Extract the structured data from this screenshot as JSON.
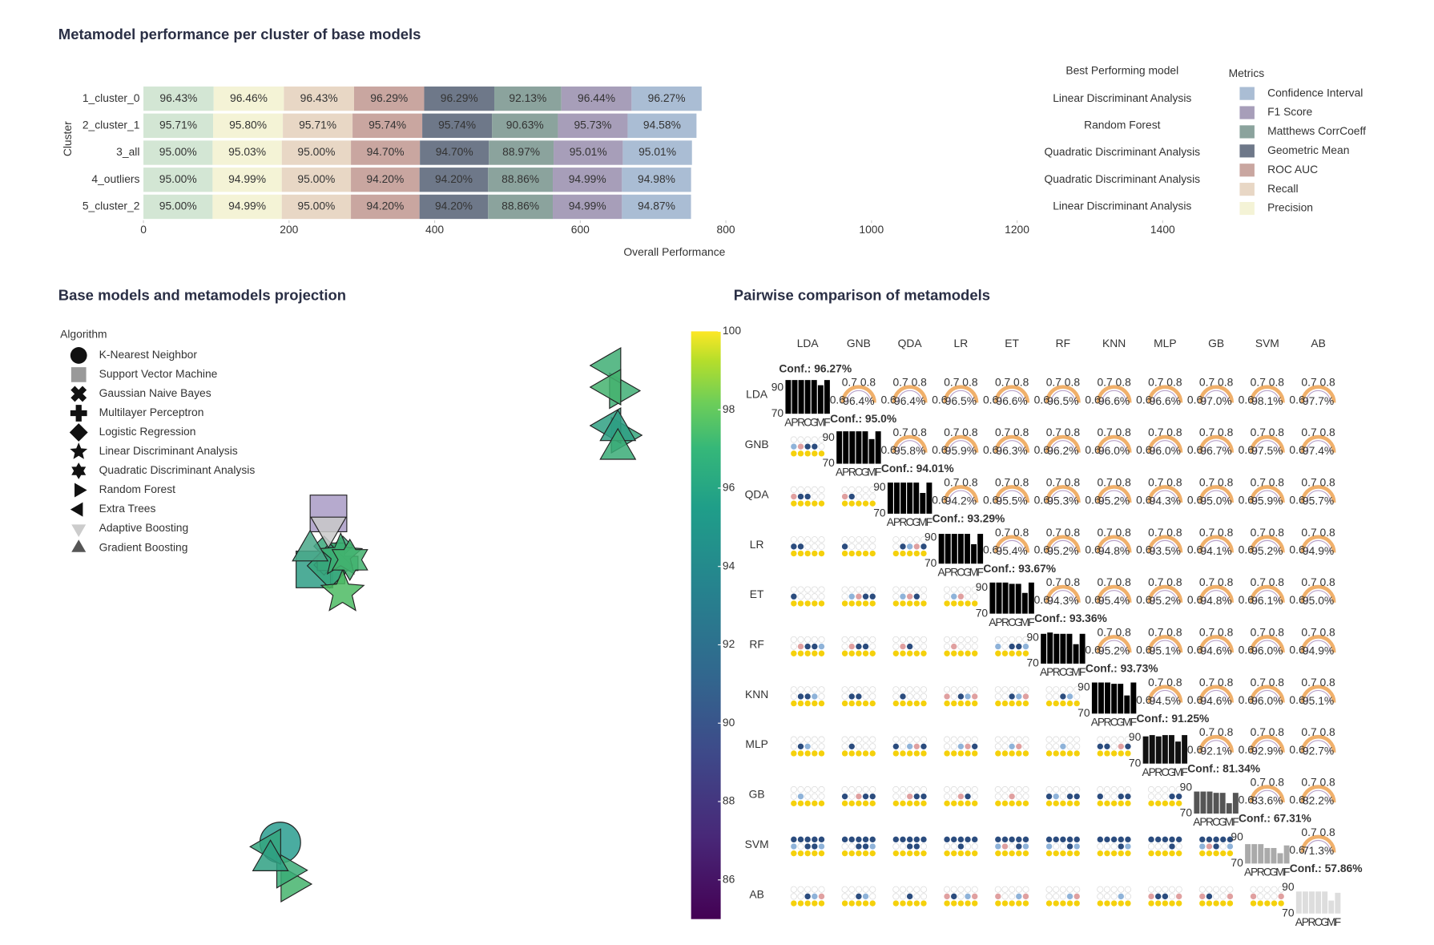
{
  "chart_data": [
    {
      "type": "bar",
      "orientation": "horizontal",
      "stacked": true,
      "title": "Metamodel performance per cluster of base models",
      "categories": [
        "1_cluster_0",
        "2_cluster_1",
        "3_all",
        "4_outliers",
        "5_cluster_2"
      ],
      "y_label": "Cluster",
      "x_label": "Overall Performance",
      "annotation_title": "Best Performing model",
      "annotations": [
        "Linear Discriminant Analysis",
        "Random Forest",
        "Quadratic Discriminant Analysis",
        "Quadratic Discriminant Analysis",
        "Linear Discriminant Analysis"
      ],
      "legend_title": "Metrics",
      "xlim": [
        0,
        1460
      ],
      "xticks": [
        0,
        200,
        400,
        600,
        800,
        1000,
        1200,
        1400
      ],
      "series": [
        {
          "color": "#d3e6d4",
          "label_color": "#444444",
          "values": [
            96.43,
            95.71,
            95.0,
            95.0,
            95.0
          ],
          "value_labels": [
            "96.43%",
            "95.71%",
            "95.00%",
            "95.00%",
            "95.00%"
          ]
        },
        {
          "name": "Precision",
          "color": "#f4f3d6",
          "label_color": "#444444",
          "values": [
            96.46,
            95.8,
            95.03,
            94.99,
            94.99
          ],
          "value_labels": [
            "96.46%",
            "95.80%",
            "95.03%",
            "94.99%",
            "94.99%"
          ]
        },
        {
          "name": "Recall",
          "color": "#e8d7c5",
          "label_color": "#444444",
          "values": [
            96.43,
            95.71,
            95.0,
            95.0,
            95.0
          ],
          "value_labels": [
            "96.43%",
            "95.71%",
            "95.00%",
            "95.00%",
            "95.00%"
          ]
        },
        {
          "name": "ROC AUC",
          "color": "#c9a6a0",
          "label_color": "#444444",
          "values": [
            96.29,
            95.74,
            94.7,
            94.2,
            94.2
          ],
          "value_labels": [
            "96.29%",
            "95.74%",
            "94.70%",
            "94.20%",
            "94.20%"
          ]
        },
        {
          "name": "Geometric Mean",
          "color": "#6e7889",
          "label_color": "#ffffff",
          "values": [
            96.29,
            95.74,
            94.7,
            94.2,
            94.2
          ],
          "value_labels": [
            "96.29%",
            "95.74%",
            "94.70%",
            "94.20%",
            "94.20%"
          ]
        },
        {
          "name": "Matthews CorrCoeff",
          "color": "#8ba39d",
          "label_color": "#444444",
          "values": [
            92.13,
            90.63,
            88.97,
            88.86,
            88.86
          ],
          "value_labels": [
            "92.13%",
            "90.63%",
            "88.97%",
            "88.86%",
            "88.86%"
          ]
        },
        {
          "name": "F1 Score",
          "color": "#a79eb9",
          "label_color": "#444444",
          "values": [
            96.44,
            95.73,
            95.01,
            94.99,
            94.99
          ],
          "value_labels": [
            "96.44%",
            "95.73%",
            "95.01%",
            "94.99%",
            "94.99%"
          ]
        },
        {
          "name": "Confidence Interval",
          "color": "#aabdd4",
          "label_color": "#444444",
          "values": [
            96.27,
            94.58,
            95.01,
            94.98,
            94.87
          ],
          "value_labels": [
            "96.27%",
            "94.58%",
            "95.01%",
            "94.98%",
            "94.87%"
          ]
        }
      ]
    },
    {
      "type": "scatter",
      "title": "Base models and metamodels projection",
      "legend_title": "Algorithm",
      "xlim": [
        0,
        100
      ],
      "ylim": [
        0,
        100
      ],
      "series": [
        {
          "name": "K-Nearest Neighbor",
          "marker": "circle",
          "x": [
            36.8
          ],
          "y": [
            13.8
          ],
          "colors": [
            "#2a9d8f"
          ]
        },
        {
          "name": "Support Vector Machine",
          "marker": "square",
          "x": [
            44.7,
            42.4
          ],
          "y": [
            68.5,
            59.2
          ],
          "colors": [
            "#a99bc6",
            "#2f9e86"
          ]
        },
        {
          "name": "Gaussian Naive Bayes",
          "marker": "x",
          "x": [
            45.5
          ],
          "y": [
            61.5
          ],
          "colors": [
            "#3aa87a"
          ]
        },
        {
          "name": "Multilayer Perceptron",
          "marker": "cross",
          "x": [
            46.2
          ],
          "y": [
            60.2
          ],
          "colors": [
            "#3cae74"
          ]
        },
        {
          "name": "Logistic Regression",
          "marker": "diamond",
          "x": [
            44.9
          ],
          "y": [
            59.8
          ],
          "colors": [
            "#36a67c"
          ]
        },
        {
          "name": "Linear Discriminant Analysis",
          "marker": "star",
          "x": [
            47.0,
            46.7
          ],
          "y": [
            55.4,
            61.5
          ],
          "colors": [
            "#4cbb63",
            "#3daf73"
          ]
        },
        {
          "name": "Quadratic Discriminant Analysis",
          "marker": "hexagram",
          "x": [
            48.2
          ],
          "y": [
            60.8
          ],
          "colors": [
            "#42b36e"
          ]
        },
        {
          "name": "Random Forest",
          "marker": "triangle-right",
          "x": [
            92.4,
            92.7,
            38.6,
            37.9
          ],
          "y": [
            88.9,
            81.5,
            6.9,
            9.2
          ],
          "colors": [
            "#3fae74",
            "#36a67c",
            "#45b46d",
            "#3aab77"
          ]
        },
        {
          "name": "Extra Trees",
          "marker": "triangle-left",
          "x": [
            90.9,
            90.9,
            90.9,
            35.2
          ],
          "y": [
            93.1,
            89.5,
            83.1,
            13.1
          ],
          "colors": [
            "#3fae74",
            "#44b26f",
            "#2fa083",
            "#34a47e"
          ]
        },
        {
          "name": "Adaptive Boosting",
          "marker": "triangle-down",
          "x": [
            44.7
          ],
          "y": [
            66.2
          ],
          "colors": [
            "#c9c9c9"
          ]
        },
        {
          "name": "Gradient Boosting",
          "marker": "triangle-up",
          "x": [
            92.1,
            92.1,
            41.7,
            35.2
          ],
          "y": [
            82.3,
            79.2,
            62.3,
            10.8
          ],
          "colors": [
            "#2f9f84",
            "#3aab77",
            "#4aa88a",
            "#2fa083"
          ]
        }
      ]
    },
    {
      "type": "matrix",
      "title": "Pairwise comparison of metamodels",
      "models": [
        "LDA",
        "GNB",
        "QDA",
        "LR",
        "ET",
        "RF",
        "KNN",
        "MLP",
        "GB",
        "SVM",
        "AB"
      ],
      "conf_values": [
        96.27,
        95.0,
        94.01,
        93.29,
        93.67,
        93.36,
        93.73,
        91.25,
        81.34,
        67.31,
        57.86
      ],
      "conf_labels": [
        "Conf.: 96.27%",
        "Conf.: 95.0%",
        "Conf.: 94.01%",
        "Conf.: 93.29%",
        "Conf.: 93.67%",
        "Conf.: 93.36%",
        "Conf.: 93.73%",
        "Conf.: 91.25%",
        "Conf.: 81.34%",
        "Conf.: 67.31%",
        "Conf.: 57.86%"
      ],
      "bar_categories": [
        "A",
        "P",
        "R",
        "C",
        "G",
        "M",
        "F"
      ],
      "bar_ylim": [
        70,
        100
      ],
      "bar_yticks": [
        70,
        90
      ],
      "bar_colors": [
        "#000000",
        "#000000",
        "#000000",
        "#000000",
        "#000000",
        "#000000",
        "#000000",
        "#111111",
        "#555555",
        "#aaaaaa",
        "#dddddd"
      ],
      "bar_values": [
        [
          96,
          96,
          96,
          96,
          96,
          92,
          96
        ],
        [
          95,
          95,
          95,
          95,
          95,
          89,
          95
        ],
        [
          94,
          94,
          94,
          94,
          94,
          86,
          94
        ],
        [
          93,
          93,
          93,
          93,
          93,
          85,
          93
        ],
        [
          94,
          94,
          94,
          93,
          93,
          86,
          94
        ],
        [
          93,
          94,
          93,
          93,
          93,
          85,
          93
        ],
        [
          94,
          94,
          94,
          93,
          93,
          84,
          94
        ],
        [
          91,
          92,
          91,
          92,
          92,
          87,
          92
        ],
        [
          87,
          87,
          87,
          86,
          86,
          78,
          86
        ],
        [
          85,
          85,
          85,
          82,
          82,
          78,
          84
        ],
        [
          87,
          87,
          87,
          87,
          87,
          80,
          86
        ]
      ],
      "gauge_ticks": [
        0.6,
        0.7,
        0.8
      ],
      "gauge_row_colors": [
        "#3aa655",
        "#3aa655",
        "#9b59b6",
        "#9b59b6",
        "#9b59b6",
        "#9b59b6",
        "#9b59b6",
        "#9b59b6",
        "#9b59b6",
        "#9b59b6"
      ],
      "gauge_values": [
        [
          96.4,
          96.4,
          96.5,
          96.6,
          96.5,
          96.6,
          96.6,
          97.0,
          98.1,
          97.7
        ],
        [
          95.8,
          95.9,
          96.3,
          96.2,
          96.0,
          96.0,
          96.7,
          97.5,
          97.4
        ],
        [
          94.2,
          95.5,
          95.3,
          95.2,
          94.3,
          95.0,
          95.9,
          95.7
        ],
        [
          95.4,
          95.2,
          94.8,
          93.5,
          94.1,
          95.2,
          94.9
        ],
        [
          94.3,
          95.4,
          95.2,
          94.8,
          96.1,
          95.0
        ],
        [
          95.2,
          95.1,
          94.6,
          96.0,
          94.9
        ],
        [
          94.5,
          94.6,
          96.0,
          95.1
        ],
        [
          92.1,
          92.9,
          92.7
        ],
        [
          83.6,
          82.2
        ],
        [
          71.3
        ]
      ],
      "gauge_labels": [
        [
          "96.4%",
          "96.4%",
          "96.5%",
          "96.6%",
          "96.5%",
          "96.6%",
          "96.6%",
          "97.0%",
          "98.1%",
          "97.7%"
        ],
        [
          "95.8%",
          "95.9%",
          "96.3%",
          "96.2%",
          "96.0%",
          "96.0%",
          "96.7%",
          "97.5%",
          "97.4%"
        ],
        [
          "94.2%",
          "95.5%",
          "95.3%",
          "95.2%",
          "94.3%",
          "95.0%",
          "95.9%",
          "95.7%"
        ],
        [
          "95.4%",
          "95.2%",
          "94.8%",
          "93.5%",
          "94.1%",
          "95.2%",
          "94.9%"
        ],
        [
          "94.3%",
          "95.4%",
          "95.2%",
          "94.8%",
          "96.1%",
          "95.0%"
        ],
        [
          "95.2%",
          "95.1%",
          "94.6%",
          "96.0%",
          "94.9%"
        ],
        [
          "94.5%",
          "94.6%",
          "96.0%",
          "95.1%"
        ],
        [
          "92.1%",
          "92.9%",
          "92.7%"
        ],
        [
          "83.6%",
          "82.2%"
        ],
        [
          "71.3%"
        ]
      ],
      "colorbar_lim": [
        85,
        100
      ],
      "colorbar_ticks": [
        86,
        88,
        90,
        92,
        94,
        96,
        98,
        100
      ]
    }
  ]
}
